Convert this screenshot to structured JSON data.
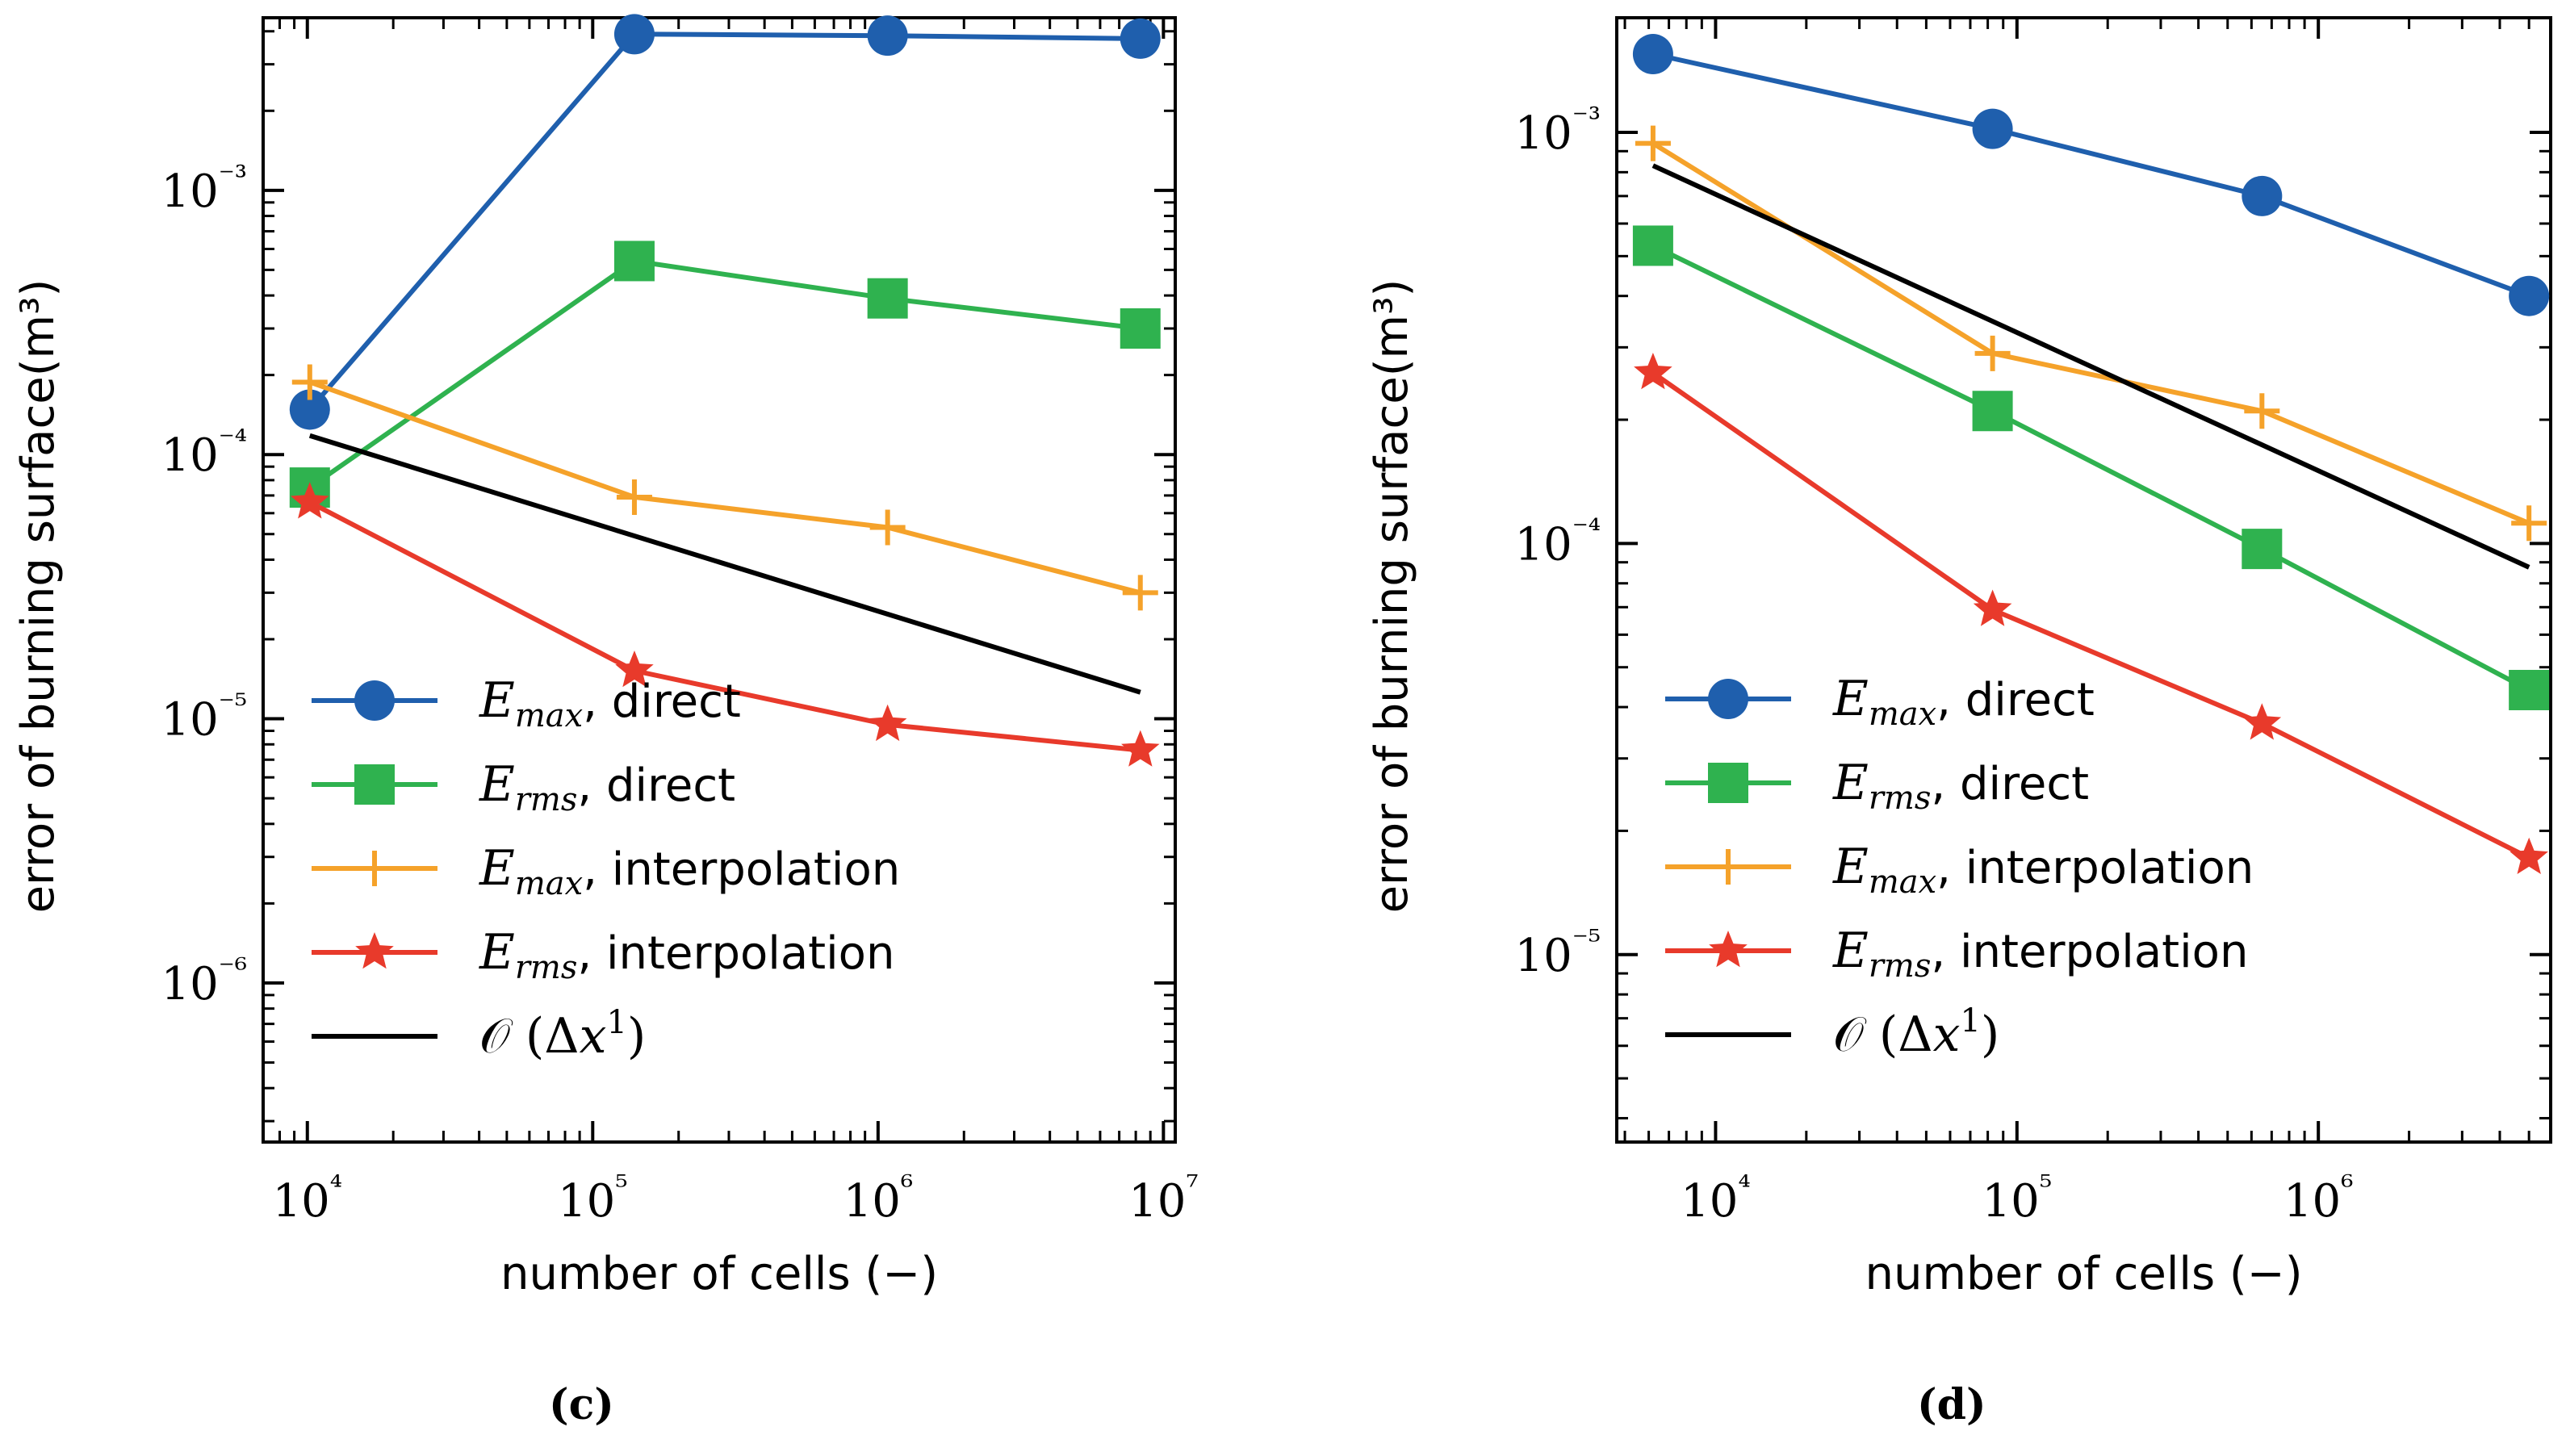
{
  "panels": [
    {
      "caption": "(c)"
    },
    {
      "caption": "(d)"
    }
  ],
  "colors": {
    "direct_max": "#1f5fad",
    "direct_rms": "#2fb24f",
    "interp_max": "#f5a22a",
    "interp_rms": "#e83a2b",
    "reference": "#000000"
  },
  "chart_data": [
    {
      "type": "line",
      "title": "",
      "xlabel": "number of cells (−)",
      "ylabel": "error of burning surface(m³)",
      "xscale": "log",
      "yscale": "log",
      "xlim": [
        7000,
        11000000
      ],
      "ylim": [
        2.5e-07,
        0.0045
      ],
      "xticks": [
        10000,
        100000,
        1000000,
        10000000
      ],
      "xtick_labels": [
        "10⁴",
        "10⁵",
        "10⁶",
        "10⁷"
      ],
      "yticks": [
        1e-06,
        1e-05,
        0.0001,
        0.001
      ],
      "ytick_labels": [
        "10⁻⁶",
        "10⁻⁵",
        "10⁻⁴",
        "10⁻³"
      ],
      "legend_position": "lower-left",
      "grid": false,
      "series": [
        {
          "name": "E_max, direct",
          "marker": "circle",
          "x": [
            10200,
            140000,
            1080000,
            8300000
          ],
          "y": [
            0.000148,
            0.0039,
            0.00385,
            0.00375
          ]
        },
        {
          "name": "E_rms, direct",
          "marker": "square",
          "x": [
            10200,
            140000,
            1080000,
            8300000
          ],
          "y": [
            7.5e-05,
            0.00054,
            0.00039,
            0.0003
          ]
        },
        {
          "name": "E_max, interpolation",
          "marker": "plus",
          "x": [
            10200,
            140000,
            1080000,
            8300000
          ],
          "y": [
            0.000188,
            6.9e-05,
            5.3e-05,
            3e-05
          ]
        },
        {
          "name": "E_rms, interpolation",
          "marker": "star",
          "x": [
            10200,
            140000,
            1080000,
            8300000
          ],
          "y": [
            6.6e-05,
            1.52e-05,
            9.5e-06,
            7.6e-06
          ]
        },
        {
          "name": "O(Δx¹)",
          "marker": "none",
          "x": [
            10200,
            8300000
          ],
          "y": [
            0.000118,
            1.26e-05
          ]
        }
      ]
    },
    {
      "type": "line",
      "title": "",
      "xlabel": "number of cells (−)",
      "ylabel": "error of burning surface(m³)",
      "xscale": "log",
      "yscale": "log",
      "xlim": [
        4700,
        5900000
      ],
      "ylim": [
        3.5e-06,
        0.0019
      ],
      "xticks": [
        10000,
        100000,
        1000000
      ],
      "xtick_labels": [
        "10⁴",
        "10⁵",
        "10⁶"
      ],
      "yticks": [
        1e-05,
        0.0001,
        0.001
      ],
      "ytick_labels": [
        "10⁻⁵",
        "10⁻⁴",
        "10⁻³"
      ],
      "legend_position": "lower-left",
      "grid": false,
      "series": [
        {
          "name": "E_max, direct",
          "marker": "circle",
          "x": [
            6200,
            83000,
            650000,
            5000000
          ],
          "y": [
            0.00155,
            0.00102,
            0.0007,
            0.0004
          ]
        },
        {
          "name": "E_rms, direct",
          "marker": "square",
          "x": [
            6200,
            83000,
            650000,
            5000000
          ],
          "y": [
            0.00053,
            0.00021,
            9.7e-05,
            4.4e-05
          ]
        },
        {
          "name": "E_max, interpolation",
          "marker": "plus",
          "x": [
            6200,
            83000,
            650000,
            5000000
          ],
          "y": [
            0.00094,
            0.00029,
            0.00021,
            0.000112
          ]
        },
        {
          "name": "E_rms, interpolation",
          "marker": "star",
          "x": [
            6200,
            83000,
            650000,
            5000000
          ],
          "y": [
            0.00026,
            6.9e-05,
            3.65e-05,
            1.72e-05
          ]
        },
        {
          "name": "O(Δx¹)",
          "marker": "none",
          "x": [
            6200,
            5000000
          ],
          "y": [
            0.00083,
            8.75e-05
          ]
        }
      ]
    }
  ]
}
